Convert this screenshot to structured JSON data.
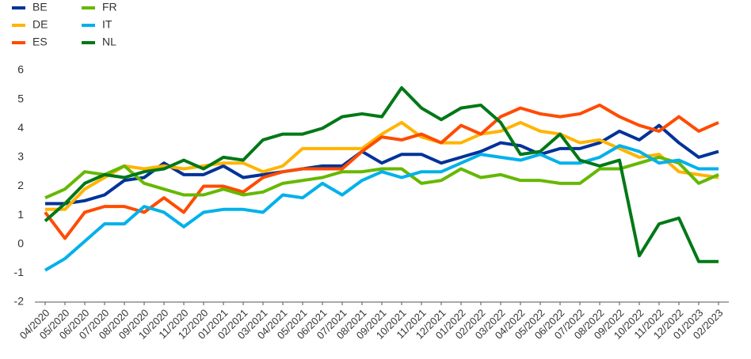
{
  "chart_data": {
    "type": "line",
    "categories": [
      "04/2020",
      "05/2020",
      "06/2020",
      "07/2020",
      "08/2020",
      "09/2020",
      "10/2020",
      "11/2020",
      "12/2020",
      "01/2021",
      "02/2021",
      "03/2021",
      "04/2021",
      "05/2021",
      "06/2021",
      "07/2021",
      "08/2021",
      "09/2021",
      "10/2021",
      "11/2021",
      "12/2021",
      "01/2022",
      "02/2022",
      "03/2022",
      "04/2022",
      "05/2022",
      "06/2022",
      "07/2022",
      "08/2022",
      "09/2022",
      "10/2022",
      "11/2022",
      "12/2022",
      "01/2023",
      "02/2023"
    ],
    "series": [
      {
        "name": "BE",
        "color": "#003299",
        "values": [
          1.4,
          1.4,
          1.5,
          1.7,
          2.2,
          2.3,
          2.8,
          2.4,
          2.4,
          2.7,
          2.3,
          2.4,
          2.5,
          2.6,
          2.7,
          2.7,
          3.2,
          2.8,
          3.1,
          3.1,
          2.8,
          3.0,
          3.2,
          3.5,
          3.4,
          3.1,
          3.3,
          3.3,
          3.5,
          3.9,
          3.6,
          4.1,
          3.5,
          3.0,
          3.2
        ]
      },
      {
        "name": "DE",
        "color": "#ffb400",
        "values": [
          1.2,
          1.2,
          1.9,
          2.3,
          2.7,
          2.6,
          2.7,
          2.6,
          2.7,
          2.8,
          2.8,
          2.5,
          2.7,
          3.3,
          3.3,
          3.3,
          3.3,
          3.8,
          4.2,
          3.7,
          3.5,
          3.5,
          3.8,
          3.9,
          4.2,
          3.9,
          3.8,
          3.5,
          3.6,
          3.3,
          3.0,
          3.1,
          2.5,
          2.4,
          2.3
        ]
      },
      {
        "name": "ES",
        "color": "#ff4b00",
        "values": [
          1.1,
          0.2,
          1.1,
          1.3,
          1.3,
          1.1,
          1.6,
          1.1,
          2.0,
          2.0,
          1.8,
          2.3,
          2.5,
          2.6,
          2.6,
          2.6,
          3.2,
          3.7,
          3.6,
          3.8,
          3.5,
          4.1,
          3.8,
          4.4,
          4.7,
          4.5,
          4.4,
          4.5,
          4.8,
          4.4,
          4.1,
          3.9,
          4.4,
          3.9,
          4.2
        ]
      },
      {
        "name": "FR",
        "color": "#65b800",
        "values": [
          1.6,
          1.9,
          2.5,
          2.4,
          2.7,
          2.1,
          1.9,
          1.7,
          1.7,
          1.9,
          1.7,
          1.8,
          2.1,
          2.2,
          2.3,
          2.5,
          2.5,
          2.6,
          2.6,
          2.1,
          2.2,
          2.6,
          2.3,
          2.4,
          2.2,
          2.2,
          2.1,
          2.1,
          2.6,
          2.6,
          2.8,
          3.0,
          2.8,
          2.1,
          2.4
        ]
      },
      {
        "name": "IT",
        "color": "#00b1ea",
        "values": [
          -0.9,
          -0.5,
          0.1,
          0.7,
          0.7,
          1.3,
          1.1,
          0.6,
          1.1,
          1.2,
          1.2,
          1.1,
          1.7,
          1.6,
          2.1,
          1.7,
          2.2,
          2.5,
          2.3,
          2.5,
          2.5,
          2.8,
          3.1,
          3.0,
          2.9,
          3.1,
          2.8,
          2.8,
          3.0,
          3.4,
          3.2,
          2.8,
          2.9,
          2.6,
          2.6
        ]
      },
      {
        "name": "NL",
        "color": "#007816",
        "values": [
          0.8,
          1.4,
          2.1,
          2.4,
          2.3,
          2.5,
          2.6,
          2.9,
          2.6,
          3.0,
          2.9,
          3.6,
          3.8,
          3.8,
          4.0,
          4.4,
          4.5,
          4.4,
          5.4,
          4.7,
          4.3,
          4.7,
          4.8,
          4.2,
          3.1,
          3.2,
          3.8,
          2.9,
          2.7,
          2.9,
          -0.4,
          0.7,
          0.9,
          -0.6,
          -0.6
        ]
      }
    ],
    "ylim": [
      -2,
      6
    ],
    "yticks": [
      -2,
      -1,
      0,
      1,
      2,
      3,
      4,
      5,
      6
    ],
    "grid": false
  }
}
